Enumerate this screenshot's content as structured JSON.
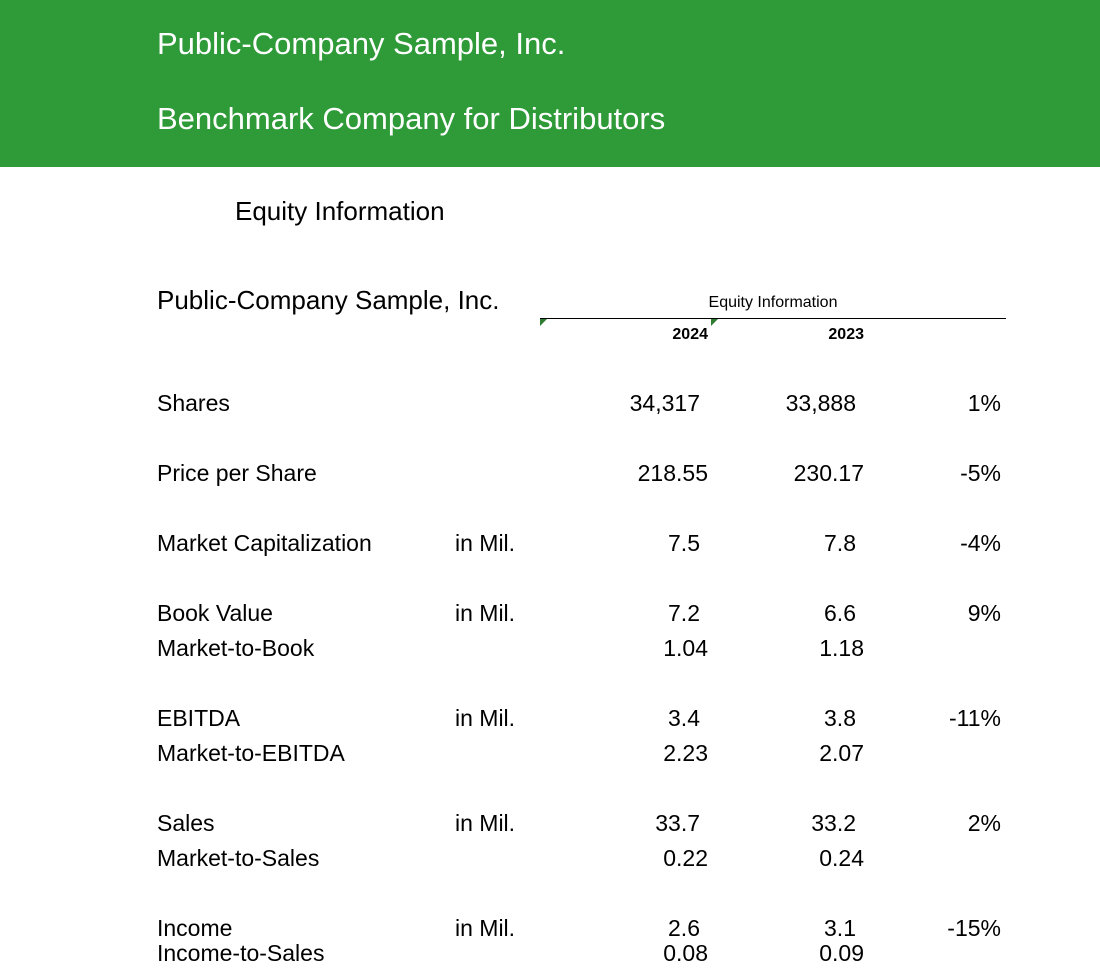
{
  "banner": {
    "line1": "Public-Company Sample, Inc.",
    "line2": "Benchmark Company for Distributors",
    "color": "#2e9a38"
  },
  "section_title": "Equity Information",
  "company_name": "Public-Company Sample, Inc.",
  "table": {
    "caption": "Equity Information",
    "year_current": "2024",
    "year_prior": "2023",
    "rows": [
      {
        "label": "Shares",
        "unit": "",
        "v2024": "34,317",
        "v2023": "33,888",
        "change": "1%"
      },
      {
        "label": "Price per Share",
        "unit": "",
        "v2024": "218.55",
        "v2023": "230.17",
        "change": "-5%"
      },
      {
        "label": "Market Capitalization",
        "unit": "in Mil.",
        "v2024": "7.5",
        "v2023": "7.8",
        "change": "-4%"
      },
      {
        "label": "Book Value",
        "unit": "in Mil.",
        "v2024": "7.2",
        "v2023": "6.6",
        "change": "9%"
      },
      {
        "label": "Market-to-Book",
        "unit": "",
        "v2024": "1.04",
        "v2023": "1.18",
        "change": ""
      },
      {
        "label": "EBITDA",
        "unit": "in Mil.",
        "v2024": "3.4",
        "v2023": "3.8",
        "change": "-11%"
      },
      {
        "label": "Market-to-EBITDA",
        "unit": "",
        "v2024": "2.23",
        "v2023": "2.07",
        "change": ""
      },
      {
        "label": "Sales",
        "unit": "in Mil.",
        "v2024": "33.7",
        "v2023": "33.2",
        "change": "2%"
      },
      {
        "label": "Market-to-Sales",
        "unit": "",
        "v2024": "0.22",
        "v2023": "0.24",
        "change": ""
      },
      {
        "label": "Income",
        "unit": "in Mil.",
        "v2024": "2.6",
        "v2023": "3.1",
        "change": "-15%"
      },
      {
        "label": "Income-to-Sales",
        "unit": "",
        "v2024": "0.08",
        "v2023": "0.09",
        "change": ""
      }
    ]
  }
}
